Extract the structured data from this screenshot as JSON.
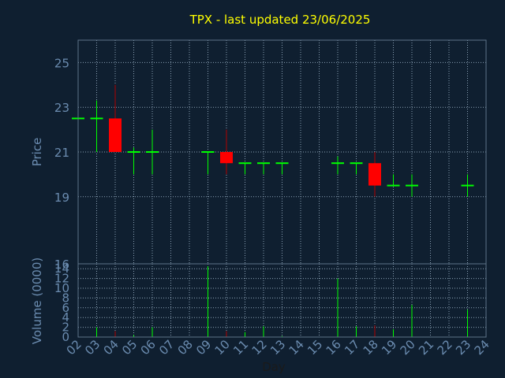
{
  "chart_data": {
    "type": "candlestick",
    "title": "TPX - last updated 23/06/2025",
    "colors": {
      "background": "#0f1f30",
      "frame": "#5e7388",
      "grid": "#8aa0b4",
      "label": "#6b8cb0",
      "title": "#ffff00",
      "up": "#00ff00",
      "down": "#ff0000"
    },
    "price_panel": {
      "ylabel": "Price",
      "ylim": [
        16,
        26
      ],
      "yticks": [
        {
          "v": 25,
          "label": "25"
        },
        {
          "v": 23,
          "label": "23"
        },
        {
          "v": 21,
          "label": "21"
        },
        {
          "v": 19,
          "label": "19"
        },
        {
          "v": 16,
          "label": "16"
        }
      ],
      "grid": true
    },
    "volume_panel": {
      "ylabel": "Volume (0000)",
      "ylim": [
        0,
        15
      ],
      "yticks": [
        {
          "v": 0,
          "label": "0"
        },
        {
          "v": 2,
          "label": "2"
        },
        {
          "v": 4,
          "label": "4"
        },
        {
          "v": 6,
          "label": "6"
        },
        {
          "v": 8,
          "label": "8"
        },
        {
          "v": 10,
          "label": "10"
        },
        {
          "v": 12,
          "label": "12"
        },
        {
          "v": 14,
          "label": "14"
        }
      ],
      "grid": true
    },
    "xlabel": "Day",
    "days": [
      "02",
      "03",
      "04",
      "05",
      "06",
      "07",
      "08",
      "09",
      "10",
      "11",
      "12",
      "13",
      "14",
      "15",
      "16",
      "17",
      "18",
      "19",
      "20",
      "21",
      "22",
      "23",
      "24"
    ],
    "candles": [
      {
        "day": "02",
        "open": 22.5,
        "high": 22.5,
        "low": 22.5,
        "close": 22.5,
        "volume": 0.0
      },
      {
        "day": "03",
        "open": 22.5,
        "high": 23.3,
        "low": 21.0,
        "close": 22.5,
        "volume": 2.0
      },
      {
        "day": "04",
        "open": 22.5,
        "high": 24.0,
        "low": 21.0,
        "close": 21.0,
        "volume": 1.2
      },
      {
        "day": "05",
        "open": 21.0,
        "high": 21.2,
        "low": 20.0,
        "close": 21.0,
        "volume": 0.4
      },
      {
        "day": "06",
        "open": 21.0,
        "high": 22.0,
        "low": 20.0,
        "close": 21.0,
        "volume": 2.0
      },
      {
        "day": "09",
        "open": 21.0,
        "high": 21.0,
        "low": 20.0,
        "close": 21.0,
        "volume": 14.5
      },
      {
        "day": "10",
        "open": 21.0,
        "high": 22.0,
        "low": 20.0,
        "close": 20.5,
        "volume": 1.2
      },
      {
        "day": "11",
        "open": 20.5,
        "high": 20.5,
        "low": 20.0,
        "close": 20.5,
        "volume": 1.0
      },
      {
        "day": "12",
        "open": 20.5,
        "high": 20.5,
        "low": 20.0,
        "close": 20.5,
        "volume": 2.2
      },
      {
        "day": "13",
        "open": 20.5,
        "high": 20.5,
        "low": 20.0,
        "close": 20.5,
        "volume": 0.2
      },
      {
        "day": "16",
        "open": 20.5,
        "high": 20.8,
        "low": 20.0,
        "close": 20.5,
        "volume": 12.0
      },
      {
        "day": "17",
        "open": 20.5,
        "high": 20.5,
        "low": 20.0,
        "close": 20.5,
        "volume": 2.2
      },
      {
        "day": "18",
        "open": 20.5,
        "high": 21.0,
        "low": 19.0,
        "close": 19.5,
        "volume": 2.4
      },
      {
        "day": "19",
        "open": 19.5,
        "high": 20.0,
        "low": 19.5,
        "close": 19.5,
        "volume": 1.6
      },
      {
        "day": "20",
        "open": 19.5,
        "high": 20.0,
        "low": 19.0,
        "close": 19.5,
        "volume": 6.6
      },
      {
        "day": "23",
        "open": 19.5,
        "high": 20.0,
        "low": 19.0,
        "close": 19.5,
        "volume": 5.6
      }
    ]
  }
}
